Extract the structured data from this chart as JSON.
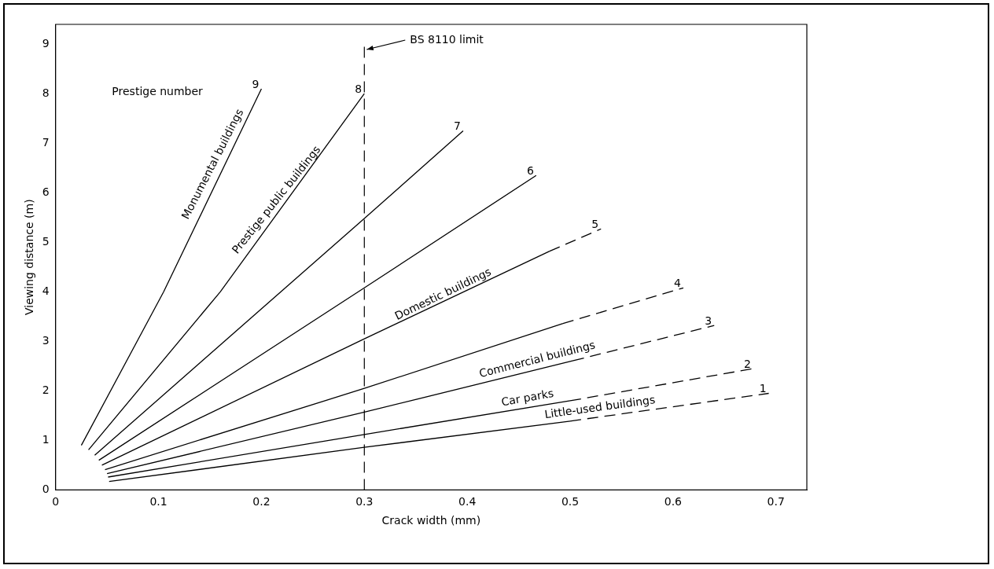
{
  "chart_data": {
    "type": "line",
    "xlabel": "Crack width (mm)",
    "ylabel": "Viewing distance (m)",
    "xlim": [
      0,
      0.73
    ],
    "ylim": [
      0,
      9.4
    ],
    "xticks": [
      0,
      0.1,
      0.2,
      0.3,
      0.4,
      0.5,
      0.6,
      0.7
    ],
    "yticks": [
      0,
      1,
      2,
      3,
      4,
      5,
      6,
      7,
      8,
      9
    ],
    "grid": false,
    "legend": false,
    "marker": "none",
    "series": [
      {
        "name": "9",
        "color": "#000000",
        "line_style": "solid",
        "x": [
          0.025,
          0.105,
          0.2
        ],
        "values": [
          0.9,
          4.0,
          8.1
        ]
      },
      {
        "name": "8",
        "color": "#000000",
        "line_style": "solid",
        "x": [
          0.032,
          0.16,
          0.3
        ],
        "values": [
          0.81,
          4.0,
          8.0
        ]
      },
      {
        "name": "7",
        "color": "#000000",
        "line_style": "solid",
        "x": [
          0.038,
          0.3,
          0.396
        ],
        "values": [
          0.7,
          5.48,
          7.25
        ]
      },
      {
        "name": "6",
        "color": "#000000",
        "line_style": "solid",
        "x": [
          0.042,
          0.3,
          0.467
        ],
        "values": [
          0.6,
          4.08,
          6.35
        ]
      },
      {
        "color": "#000000",
        "line_style": "solid",
        "x": [
          0.045,
          0.3,
          0.48
        ],
        "values": [
          0.5,
          3.05,
          4.82
        ]
      },
      {
        "name": "5",
        "color": "#000000",
        "line_style": "dashed",
        "x": [
          0.48,
          0.53
        ],
        "values": [
          4.82,
          5.27
        ]
      },
      {
        "color": "#000000",
        "line_style": "solid",
        "x": [
          0.048,
          0.3,
          0.493
        ],
        "values": [
          0.41,
          2.05,
          3.36
        ]
      },
      {
        "name": "4",
        "color": "#000000",
        "line_style": "dashed",
        "x": [
          0.493,
          0.61
        ],
        "values": [
          3.36,
          4.08
        ]
      },
      {
        "color": "#000000",
        "line_style": "solid",
        "x": [
          0.05,
          0.3,
          0.503
        ],
        "values": [
          0.33,
          1.57,
          2.61
        ]
      },
      {
        "name": "3",
        "color": "#000000",
        "line_style": "dashed",
        "x": [
          0.503,
          0.64
        ],
        "values": [
          2.61,
          3.32
        ]
      },
      {
        "color": "#000000",
        "line_style": "solid",
        "x": [
          0.051,
          0.3,
          0.5
        ],
        "values": [
          0.26,
          1.12,
          1.8
        ]
      },
      {
        "name": "2",
        "color": "#000000",
        "line_style": "dashed",
        "x": [
          0.5,
          0.678
        ],
        "values": [
          1.8,
          2.45
        ]
      },
      {
        "color": "#000000",
        "line_style": "solid",
        "x": [
          0.052,
          0.3,
          0.5
        ],
        "values": [
          0.17,
          0.86,
          1.39
        ]
      },
      {
        "name": "1",
        "color": "#000000",
        "line_style": "dashed",
        "x": [
          0.5,
          0.693
        ],
        "values": [
          1.39,
          1.95
        ]
      }
    ],
    "ref_lines": [
      {
        "axis": "x",
        "value": 0.3,
        "label": "BS 8110 limit",
        "color": "#000000",
        "line_style": "dashed"
      }
    ],
    "annotations": [
      "Prestige number",
      {
        "text": "Monumental buildings",
        "x": 0.16,
        "y": 6.5
      },
      {
        "text": "Prestige public buildings",
        "x": 0.221,
        "y": 5.75
      },
      {
        "text": "Domestic buildings",
        "x": 0.38,
        "y": 3.8
      },
      {
        "text": "Commercial buildings",
        "x": 0.47,
        "y": 2.47
      },
      {
        "text": "Car parks",
        "x": 0.46,
        "y": 1.69
      },
      {
        "text": "Little-used buildings",
        "x": 0.53,
        "y": 1.5
      }
    ]
  }
}
